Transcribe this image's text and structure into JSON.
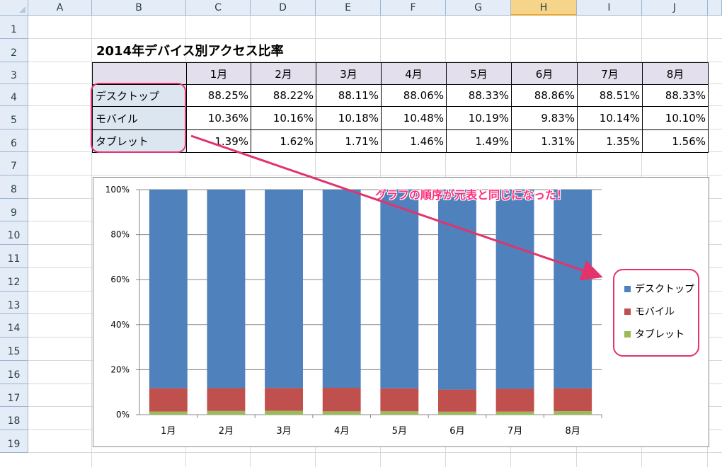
{
  "sheet": {
    "columns": [
      "A",
      "B",
      "C",
      "D",
      "E",
      "F",
      "G",
      "H",
      "I",
      "J"
    ],
    "selected_column": "H",
    "rows": [
      "1",
      "2",
      "3",
      "4",
      "5",
      "6",
      "7",
      "8",
      "9",
      "10",
      "11",
      "12",
      "13",
      "14",
      "15",
      "16",
      "17",
      "18",
      "19"
    ]
  },
  "table": {
    "title": "2014年デバイス別アクセス比率",
    "months": [
      "1月",
      "2月",
      "3月",
      "4月",
      "5月",
      "6月",
      "7月",
      "8月"
    ],
    "rows": [
      {
        "label": "デスクトップ",
        "values": [
          "88.25%",
          "88.22%",
          "88.11%",
          "88.06%",
          "88.33%",
          "88.86%",
          "88.51%",
          "88.33%"
        ]
      },
      {
        "label": "モバイル",
        "values": [
          "10.36%",
          "10.16%",
          "10.18%",
          "10.48%",
          "10.19%",
          "9.83%",
          "10.14%",
          "10.10%"
        ]
      },
      {
        "label": "タブレット",
        "values": [
          "1.39%",
          "1.62%",
          "1.71%",
          "1.46%",
          "1.49%",
          "1.31%",
          "1.35%",
          "1.56%"
        ]
      }
    ]
  },
  "annotation": "グラフの順序が元表と同じになった！",
  "colors": {
    "desktop": "#4f81bd",
    "mobile": "#c0504d",
    "tablet": "#9bbb59",
    "highlight": "#e2336b",
    "annotation": "#ff2f7c"
  },
  "chart_data": {
    "type": "bar",
    "stacked": "100%",
    "categories": [
      "1月",
      "2月",
      "3月",
      "4月",
      "5月",
      "6月",
      "7月",
      "8月"
    ],
    "series": [
      {
        "name": "デスクトップ",
        "values": [
          88.25,
          88.22,
          88.11,
          88.06,
          88.33,
          88.86,
          88.51,
          88.33
        ]
      },
      {
        "name": "モバイル",
        "values": [
          10.36,
          10.16,
          10.18,
          10.48,
          10.19,
          9.83,
          10.14,
          10.1
        ]
      },
      {
        "name": "タブレット",
        "values": [
          1.39,
          1.62,
          1.71,
          1.46,
          1.49,
          1.31,
          1.35,
          1.56
        ]
      }
    ],
    "ylim": [
      0,
      100
    ],
    "yticks": [
      "0%",
      "20%",
      "40%",
      "60%",
      "80%",
      "100%"
    ],
    "legend": "right"
  }
}
